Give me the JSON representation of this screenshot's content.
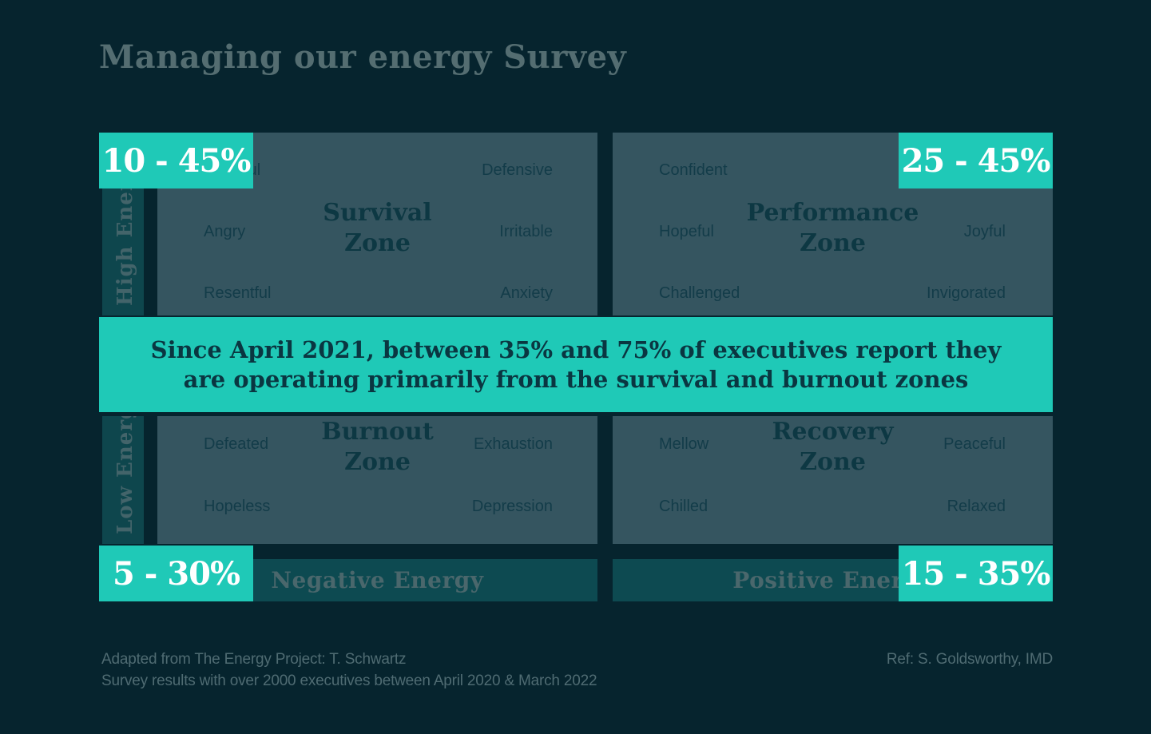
{
  "title": "Managing our energy Survey",
  "banner": {
    "line1": "Since April 2021, between 35% and 75% of executives report they",
    "line2": "are operating primarily from the survival and burnout zones"
  },
  "axes": {
    "high_energy": "High Energy",
    "low_energy": "Low Energy",
    "negative_energy": "Negative Energy",
    "positive_energy": "Positive Energy"
  },
  "quadrants": {
    "survival": {
      "name_line1": "Survival",
      "name_line2": "Zone",
      "badge": "10 - 45%",
      "emotions": {
        "row1_left": "Fearful",
        "row1_right": "Defensive",
        "row2_left": "Angry",
        "row2_right": "Irritable",
        "row3_left": "Resentful",
        "row3_right": "Anxiety"
      }
    },
    "performance": {
      "name_line1": "Performance",
      "name_line2": "Zone",
      "badge": "25 - 45%",
      "emotions": {
        "row1_left": "Confident",
        "row2_left": "Hopeful",
        "row2_right": "Joyful",
        "row3_left": "Challenged",
        "row3_right": "Invigorated"
      }
    },
    "burnout": {
      "name_line1": "Burnout",
      "name_line2": "Zone",
      "badge": "5 - 30%",
      "emotions": {
        "row1_left": "Defeated",
        "row1_right": "Exhaustion",
        "row2_left": "Hopeless",
        "row2_right": "Depression"
      }
    },
    "recovery": {
      "name_line1": "Recovery",
      "name_line2": "Zone",
      "badge": "15 - 35%",
      "emotions": {
        "row1_left": "Mellow",
        "row1_right": "Peaceful",
        "row2_left": "Chilled",
        "row2_right": "Relaxed"
      }
    }
  },
  "footer": {
    "source_line1": "Adapted from The Energy Project: T. Schwartz",
    "source_line2": "Survey results with over 2000 executives between April 2020 & March 2022",
    "reference": "Ref: S. Goldsworthy, IMD"
  },
  "colors": {
    "background": "#06242e",
    "panel": "#355560",
    "axis_bar": "#0e464d",
    "energy_bar": "#0d4a51",
    "accent_teal": "#1fc9b7",
    "badge_text": "#ffffff",
    "zone_title_text": "#0d3843",
    "emotion_text": "#133c49",
    "banner_text": "#0a3641",
    "title_text": "#546d71",
    "footer_text": "#4f6b72"
  }
}
